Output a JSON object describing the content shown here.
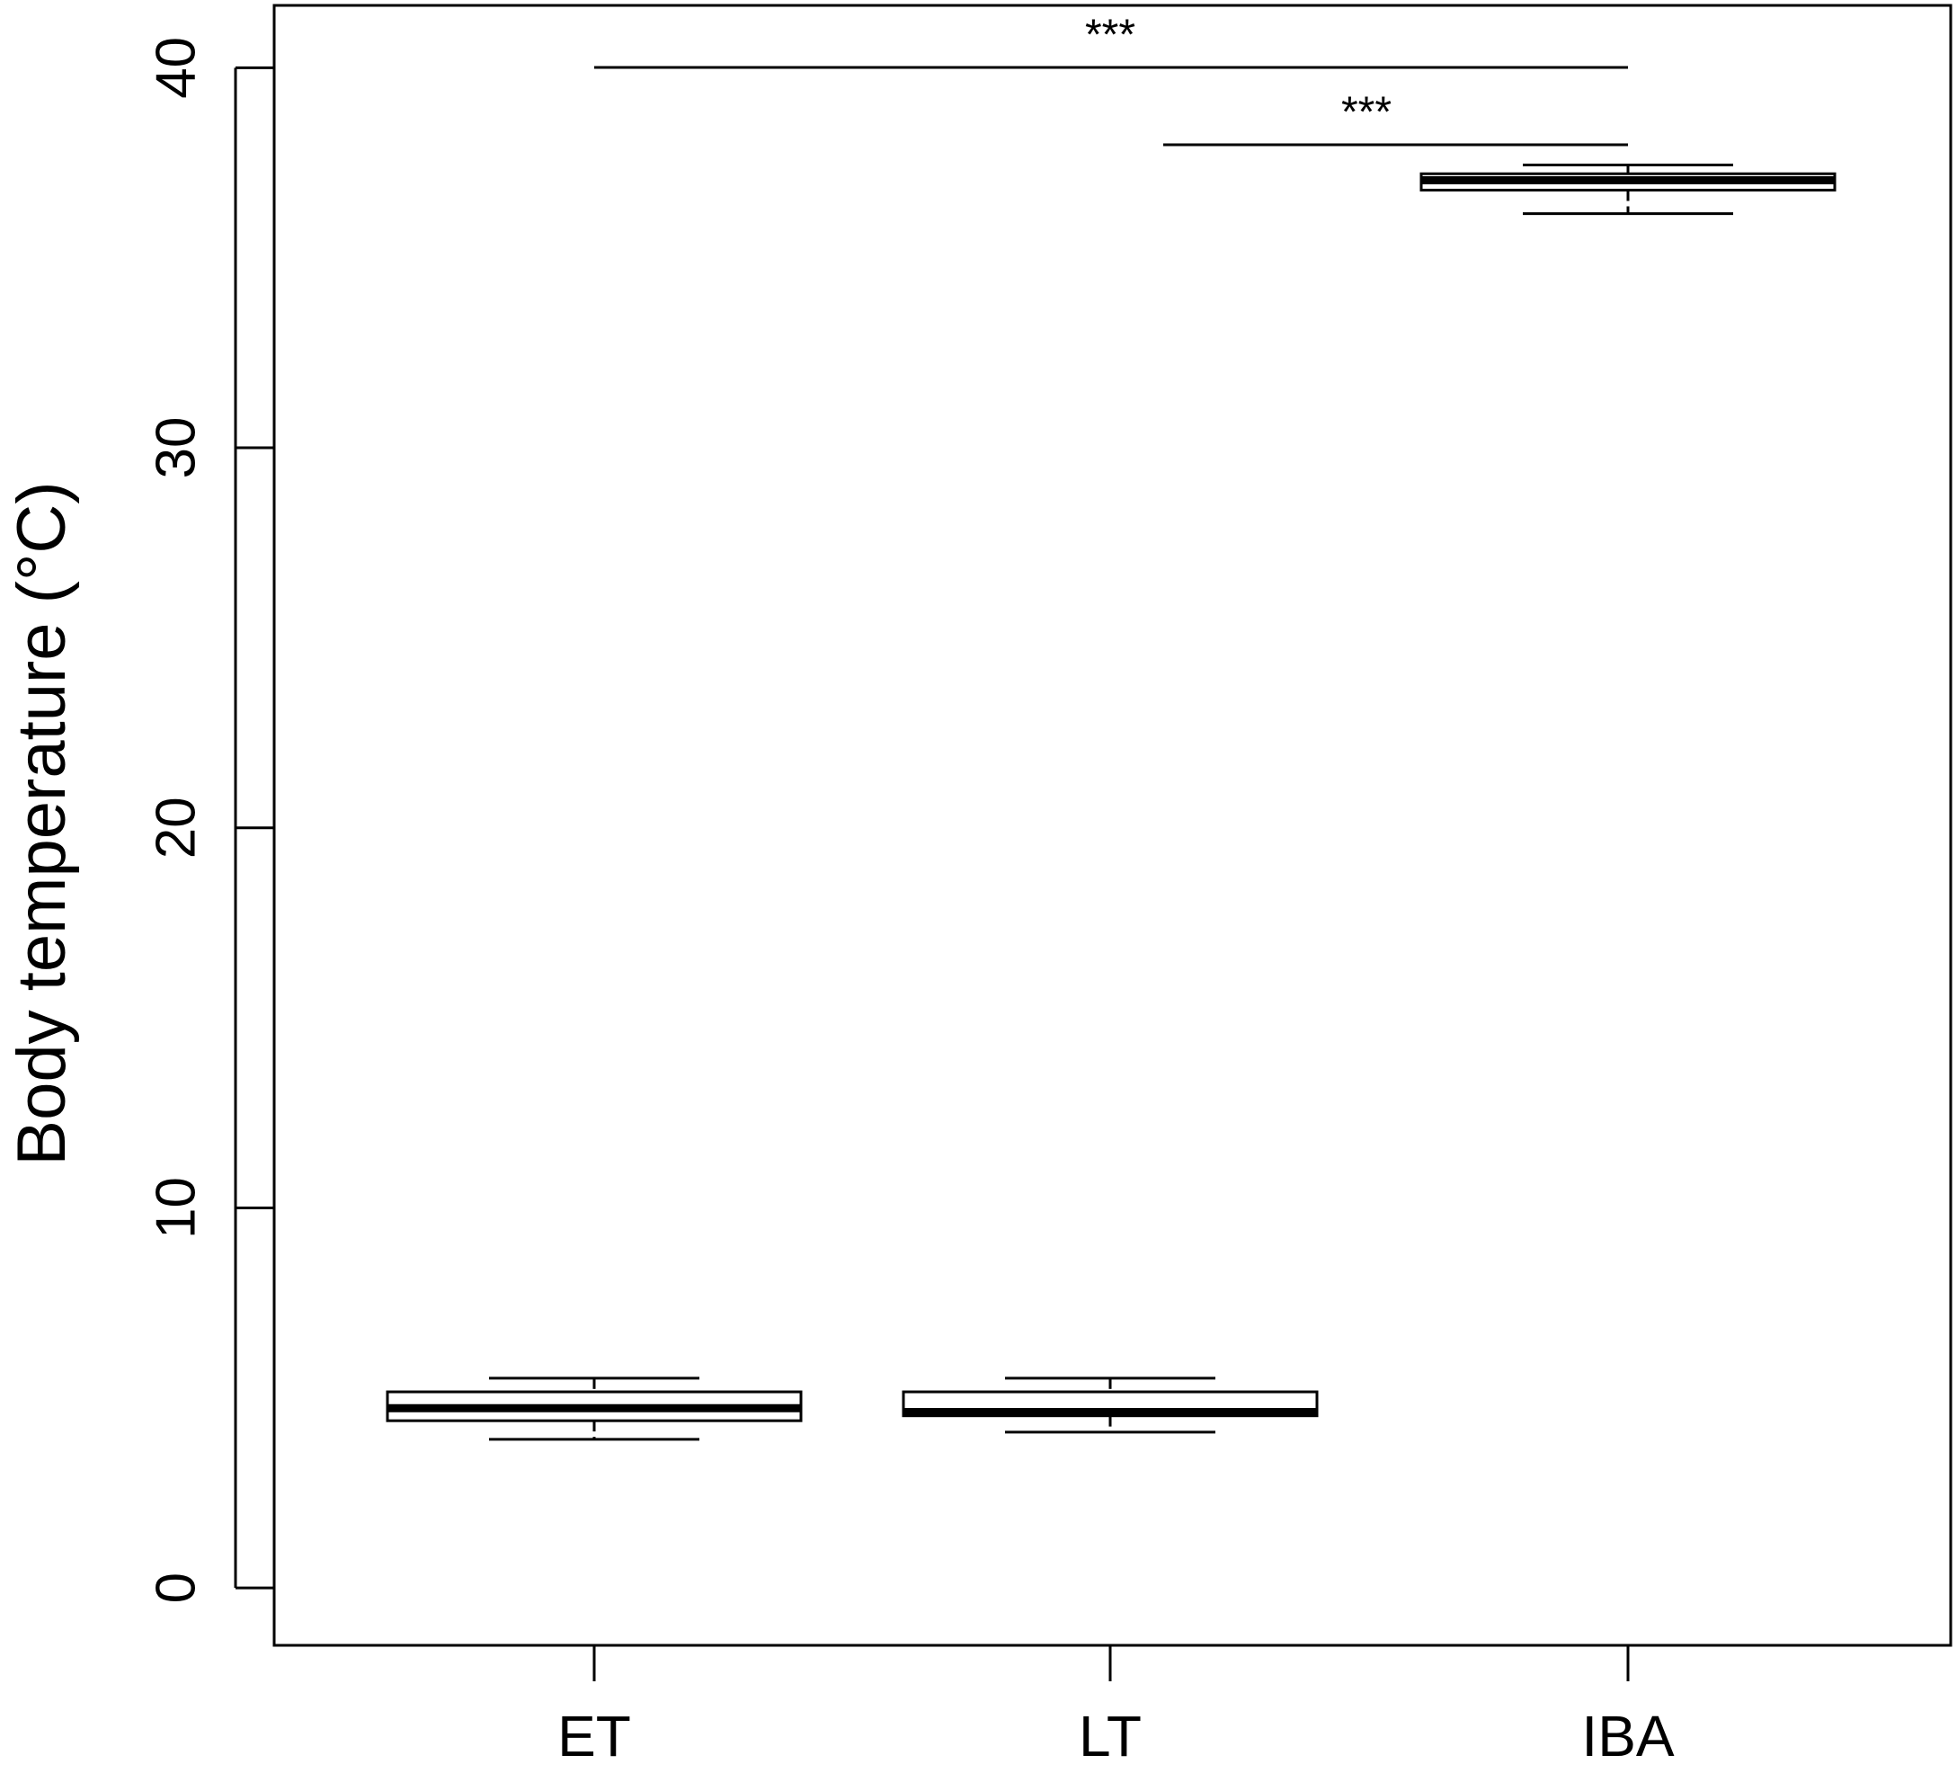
{
  "chart_data": {
    "type": "boxplot",
    "y_label": "Body temperature (°C)",
    "categories": [
      "ET",
      "LT",
      "IBA"
    ],
    "stats": [
      {
        "min": 3.91,
        "q1": 4.4,
        "median": 4.73,
        "q3": 5.16,
        "max": 5.52
      },
      {
        "min": 4.1,
        "q1": 4.53,
        "median": 4.63,
        "q3": 5.16,
        "max": 5.52
      },
      {
        "min": 36.16,
        "q1": 36.78,
        "median": 37.04,
        "q3": 37.21,
        "max": 37.44
      }
    ],
    "color": "#000000",
    "ylim": [
      -1.51,
      41.64
    ],
    "yticks": [
      0,
      10,
      20,
      30,
      40
    ],
    "annotations": [
      "***",
      "***"
    ]
  }
}
